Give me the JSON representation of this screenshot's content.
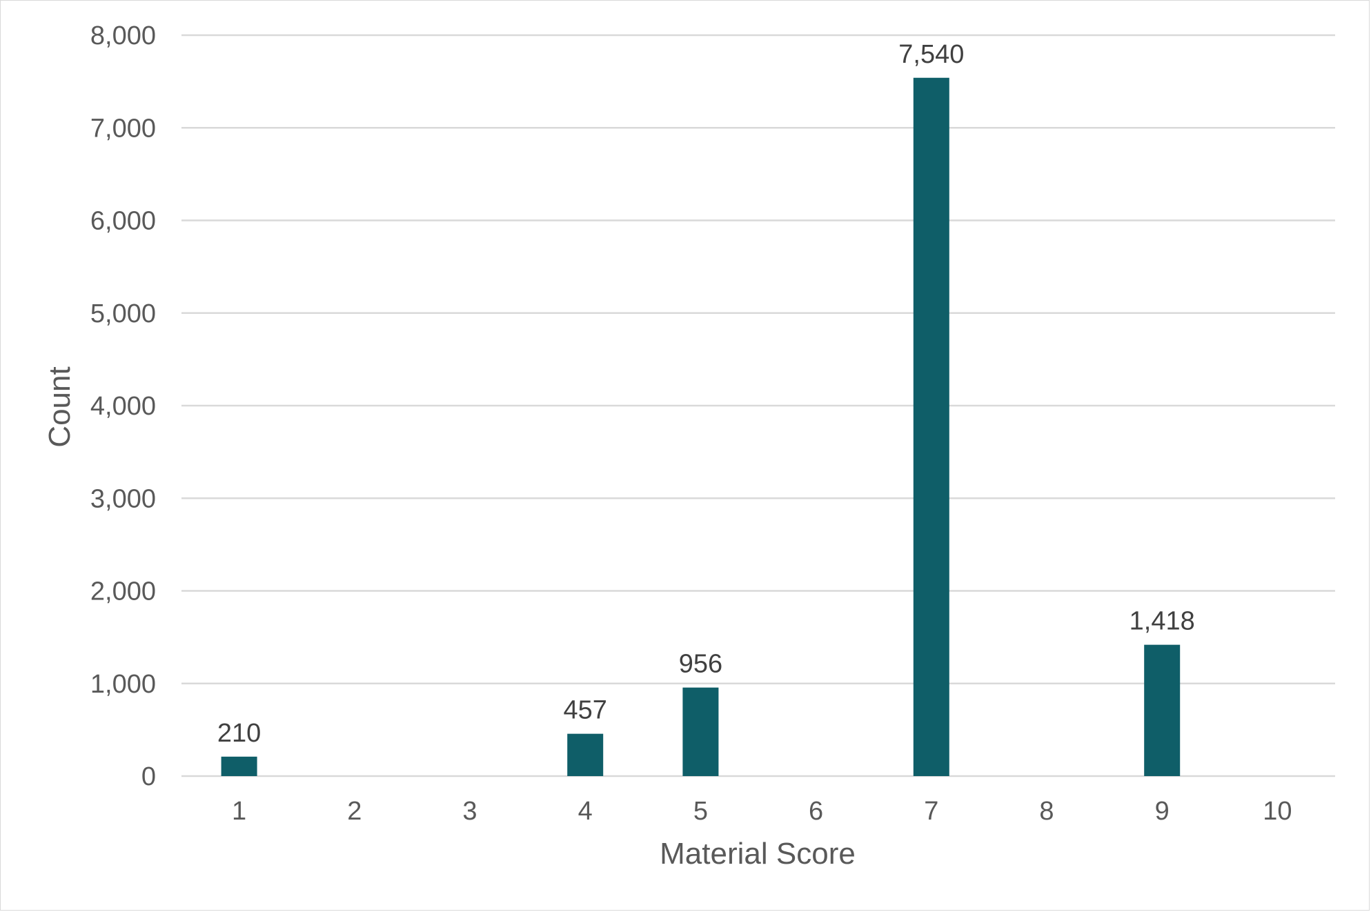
{
  "chart_data": {
    "type": "bar",
    "categories": [
      "1",
      "2",
      "3",
      "4",
      "5",
      "6",
      "7",
      "8",
      "9",
      "10"
    ],
    "values": [
      210,
      0,
      0,
      457,
      956,
      0,
      7540,
      0,
      1418,
      0
    ],
    "data_labels": [
      "210",
      "",
      "",
      "457",
      "956",
      "",
      "7,540",
      "",
      "1,418",
      ""
    ],
    "title": "",
    "xlabel": "Material Score",
    "ylabel": "Count",
    "ylim": [
      0,
      8000
    ],
    "yticks": [
      0,
      1000,
      2000,
      3000,
      4000,
      5000,
      6000,
      7000,
      8000
    ],
    "ytick_labels": [
      "0",
      "1,000",
      "2,000",
      "3,000",
      "4,000",
      "5,000",
      "6,000",
      "7,000",
      "8,000"
    ],
    "grid": true,
    "legend": "none",
    "colors": {
      "bar": "#0f5e68",
      "grid": "#d9d9d9",
      "text": "#595959",
      "label": "#404040"
    }
  }
}
